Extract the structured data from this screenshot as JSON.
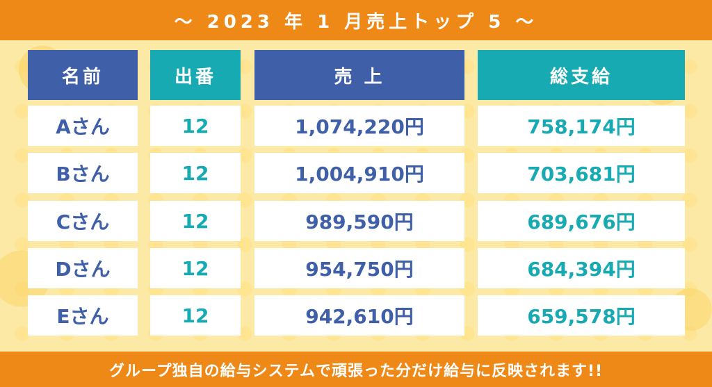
{
  "title": "～ 2023 年 1 月売上トップ 5 ～",
  "footer_note": "グループ独自の給与システムで頑張った分だけ給与に反映されます!!",
  "colors": {
    "orange_banner": "#ee8816",
    "navy": "#3f5fa9",
    "teal": "#18aab3",
    "background": "#fde9a6"
  },
  "table": {
    "headers": {
      "name": "名前",
      "count": "出番",
      "sales": "売 上",
      "pay": "総支給"
    },
    "rows": [
      {
        "name": "Aさん",
        "count": "12",
        "sales": "1,074,220円",
        "pay": "758,174円"
      },
      {
        "name": "Bさん",
        "count": "12",
        "sales": "1,004,910円",
        "pay": "703,681円"
      },
      {
        "name": "Cさん",
        "count": "12",
        "sales": "989,590円",
        "pay": "689,676円"
      },
      {
        "name": "Dさん",
        "count": "12",
        "sales": "954,750円",
        "pay": "684,394円"
      },
      {
        "name": "Eさん",
        "count": "12",
        "sales": "942,610円",
        "pay": "659,578円"
      }
    ]
  }
}
